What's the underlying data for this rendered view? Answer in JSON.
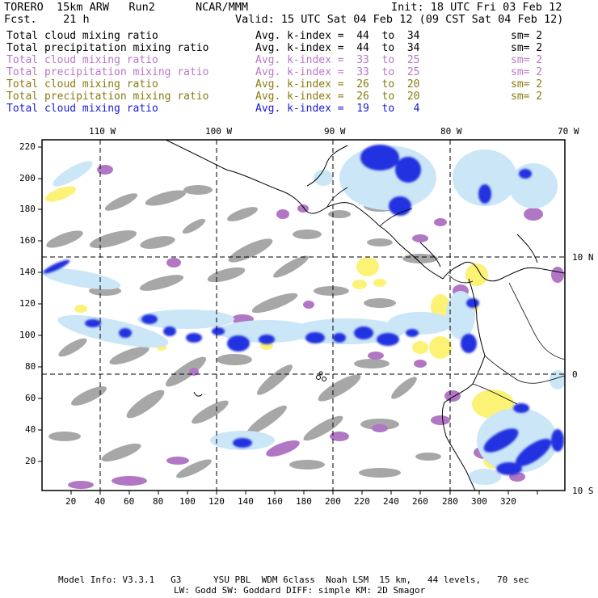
{
  "header": {
    "model": "TORERO  15km ARW   Run2",
    "org": "NCAR/MMM",
    "init": "Init: 18 UTC Fri 03 Feb 12",
    "fcst": "Fcst.    21 h",
    "valid": "Valid: 15 UTC Sat 04 Feb 12 (09 CST Sat 04 Feb 12)"
  },
  "legend": [
    {
      "field": "Total cloud mixing ratio",
      "avg": "Avg. k-index =  44  to  34",
      "sm": "sm= 2",
      "color": "#000000"
    },
    {
      "field": "Total precipitation mixing ratio",
      "avg": "Avg. k-index =  44  to  34",
      "sm": "sm= 2",
      "color": "#000000"
    },
    {
      "field": "Total cloud mixing ratio",
      "avg": "Avg. k-index =  33  to  25",
      "sm": "sm= 2",
      "color": "#b777c9"
    },
    {
      "field": "Total precipitation mixing ratio",
      "avg": "Avg. k-index =  33  to  25",
      "sm": "sm= 2",
      "color": "#b777c9"
    },
    {
      "field": "Total cloud mixing ratio",
      "avg": "Avg. k-index =  26  to  20",
      "sm": "sm= 2",
      "color": "#8a7a10"
    },
    {
      "field": "Total precipitation mixing ratio",
      "avg": "Avg. k-index =  26  to  20",
      "sm": "sm= 2",
      "color": "#8a7a10"
    },
    {
      "field": "Total cloud mixing ratio",
      "avg": "Avg. k-index =  19  to   4",
      "sm": "",
      "color": "#1a1adb"
    }
  ],
  "map": {
    "top_lon_labels": [
      "110 W",
      "100 W",
      "90 W",
      "80 W",
      "70 W"
    ],
    "right_lat_labels": [
      "10 N",
      "0",
      "10 S"
    ],
    "x_ticks": [
      "20",
      "40",
      "60",
      "80",
      "100",
      "120",
      "140",
      "160",
      "180",
      "200",
      "220",
      "240",
      "260",
      "280",
      "300",
      "320"
    ],
    "y_ticks": [
      "220",
      "200",
      "180",
      "160",
      "140",
      "120",
      "100",
      "80",
      "60",
      "40",
      "20"
    ]
  },
  "colors": {
    "grey": "#a7a7a7",
    "purple": "#b176c4",
    "yellow": "#fbf276",
    "lightblue": "#cbe6f7",
    "blue": "#2032e0",
    "darkblue": "#1010d0"
  },
  "footer": {
    "line1": "Model Info: V3.3.1   G3      YSU PBL  WDM 6class  Noah LSM  15 km,   44 levels,   70 sec",
    "line2": "LW: Godd SW: Goddard DIFF: simple KM: 2D Smagor"
  }
}
